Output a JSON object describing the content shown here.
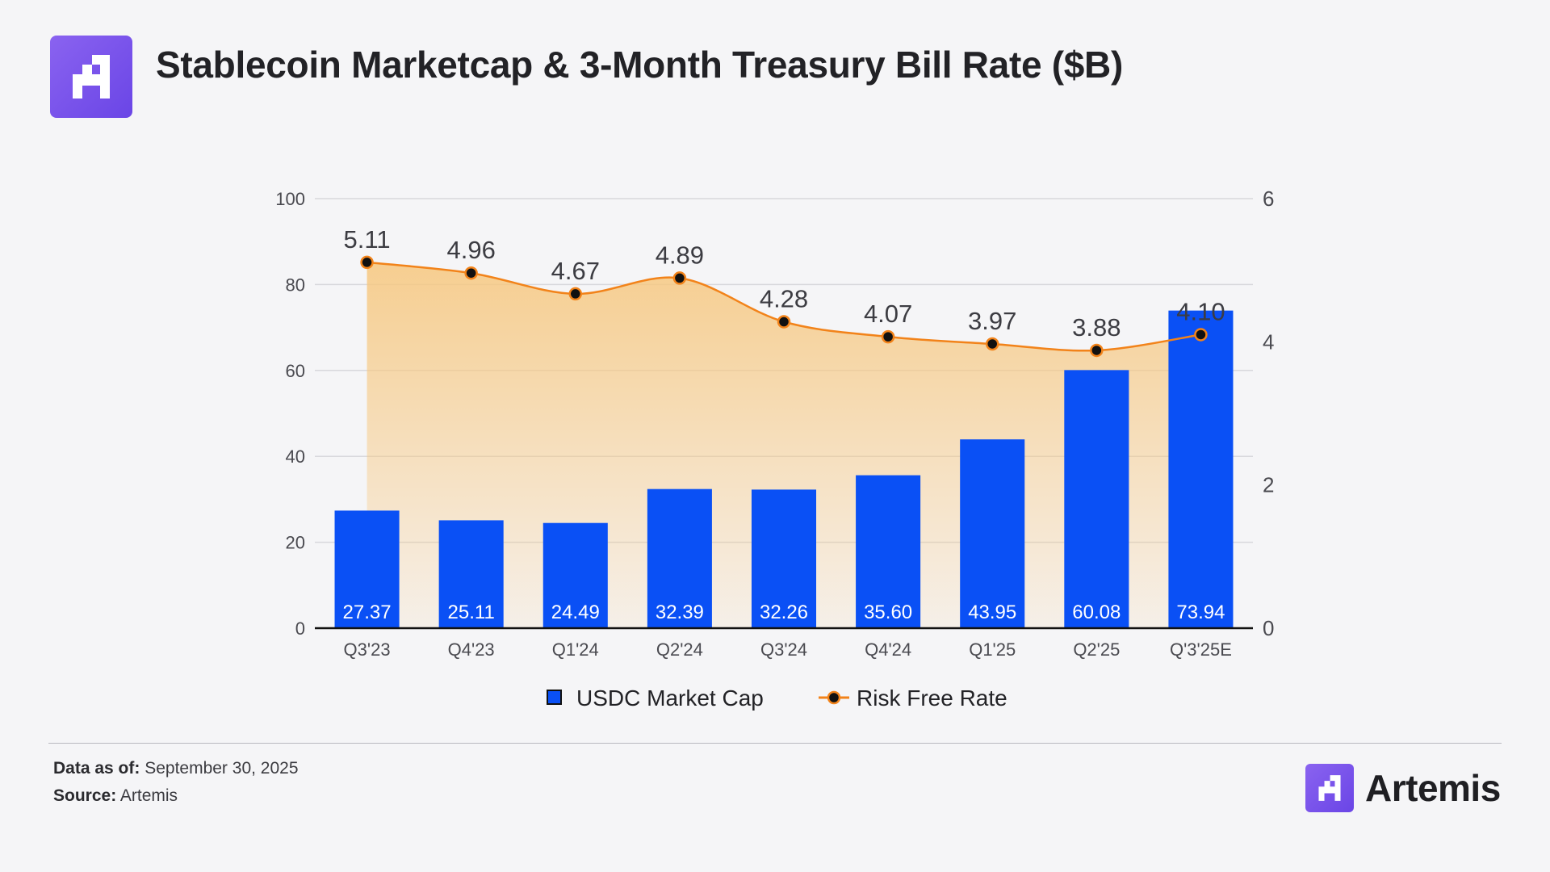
{
  "header": {
    "title": "Stablecoin Marketcap & 3-Month Treasury Bill Rate ($B)"
  },
  "colors": {
    "bar": "#0a50f5",
    "line": "#f2831a",
    "brand": "#7550ea",
    "text": "#222226"
  },
  "chart_data": {
    "type": "bar",
    "title": "Stablecoin Marketcap & 3-Month Treasury Bill Rate ($B)",
    "categories": [
      "Q3'23",
      "Q4'23",
      "Q1'24",
      "Q2'24",
      "Q3'24",
      "Q4'24",
      "Q1'25",
      "Q2'25",
      "Q'3'25E"
    ],
    "series": [
      {
        "name": "USDC Market Cap",
        "type": "bar",
        "axis": "left",
        "values": [
          27.37,
          25.11,
          24.49,
          32.39,
          32.26,
          35.6,
          43.95,
          60.08,
          73.94
        ],
        "labels": [
          "27.37",
          "25.11",
          "24.49",
          "32.39",
          "32.26",
          "35.60",
          "43.95",
          "60.08",
          "73.94"
        ]
      },
      {
        "name": "Risk Free Rate",
        "type": "area-line",
        "axis": "right",
        "values": [
          5.11,
          4.96,
          4.67,
          4.89,
          4.28,
          4.07,
          3.97,
          3.88,
          4.1
        ],
        "labels": [
          "5.11",
          "4.96",
          "4.67",
          "4.89",
          "4.28",
          "4.07",
          "3.97",
          "3.88",
          "4.10"
        ]
      }
    ],
    "y_left": {
      "range": [
        0,
        100
      ],
      "ticks": [
        "0",
        "20",
        "40",
        "60",
        "80",
        "100"
      ]
    },
    "y_right": {
      "range": [
        0,
        6
      ],
      "ticks": [
        "0",
        "2",
        "4",
        "6"
      ]
    },
    "grid": true,
    "legend_position": "bottom-center"
  },
  "footer": {
    "data_as_of_label": "Data as of:",
    "data_as_of_value": "September 30, 2025",
    "source_label": "Source:",
    "source_value": "Artemis"
  },
  "brand": {
    "name": "Artemis",
    "logo_icon": "artemis-logo-icon"
  }
}
